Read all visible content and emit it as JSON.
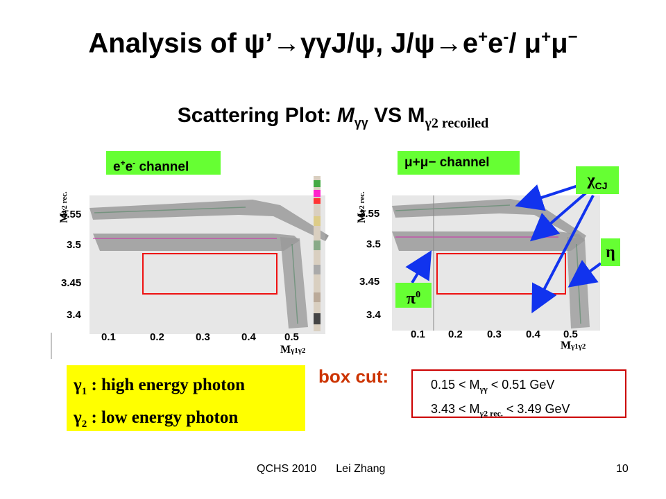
{
  "slide": {
    "title": {
      "prefix": "Analysis of ",
      "psi_prime": "ψ’",
      "arrow1": "→",
      "gg": "γγ",
      "jpsi1": "J/ψ, J/ψ",
      "arrow2": "→",
      "e": "e",
      "eplus": "+",
      "e2": "e",
      "eminus": "-",
      "slash": "/ ",
      "mumu": "μ",
      "muplus": "+",
      "mu2": "μ",
      "muminus": "−"
    },
    "subtitle": {
      "text": "Scattering Plot: ",
      "m_gg": "M",
      "gg_sub": "γγ",
      "vs": " VS M",
      "recoiled_sub": "γ2 recoiled"
    },
    "left_plot": {
      "channel_e": "e",
      "channel_plus": "+",
      "channel_e2": "e",
      "channel_minus": "-",
      "channel_suffix": " channel",
      "y_axis_label": "M",
      "y_axis_sub": "γ2 rec.",
      "x_axis_label": "M",
      "x_axis_sub": "γ1γ2",
      "y_ticks": [
        "3.55",
        "3.5",
        "3.45",
        "3.4"
      ],
      "x_ticks": [
        "0.1",
        "0.2",
        "0.3",
        "0.4",
        "0.5"
      ]
    },
    "right_plot": {
      "channel_label": "μ+μ−  channel",
      "y_axis_label": "M",
      "y_axis_sub": "γ2 rec.",
      "x_axis_label": "M",
      "x_axis_sub": "γ1γ2",
      "y_ticks": [
        "3.55",
        "3.5",
        "3.45",
        "3.4"
      ],
      "x_ticks": [
        "0.1",
        "0.2",
        "0.3",
        "0.4",
        "0.5"
      ]
    },
    "callouts": {
      "chi_cj": "χ",
      "chi_sub": "CJ",
      "eta": "η",
      "pi0": "π",
      "pi0_sup": "0"
    },
    "gamma_legend": {
      "g1": "γ",
      "g1_sub": "1",
      "g1_text": " : high energy photon",
      "g2": "γ",
      "g2_sub": "2",
      "g2_text": " : low  energy photon"
    },
    "box_cut": {
      "label": "box cut:",
      "line1_a": "0.15 < M",
      "line1_sub": "γγ",
      "line1_b": " < 0.51 GeV",
      "line2_a": "3.43 < M",
      "line2_sub": "γ2 rec.",
      "line2_b": " < 3.49 GeV"
    },
    "footer": {
      "conference": "QCHS 2010",
      "author": "Lei Zhang",
      "page": "10"
    },
    "colors": {
      "accent_green": "#66ff33",
      "legend_yellow": "#ffff00",
      "box_red": "#cc0000",
      "arrow_blue": "#1133ee",
      "boxcut_label": "#cc3300"
    }
  }
}
